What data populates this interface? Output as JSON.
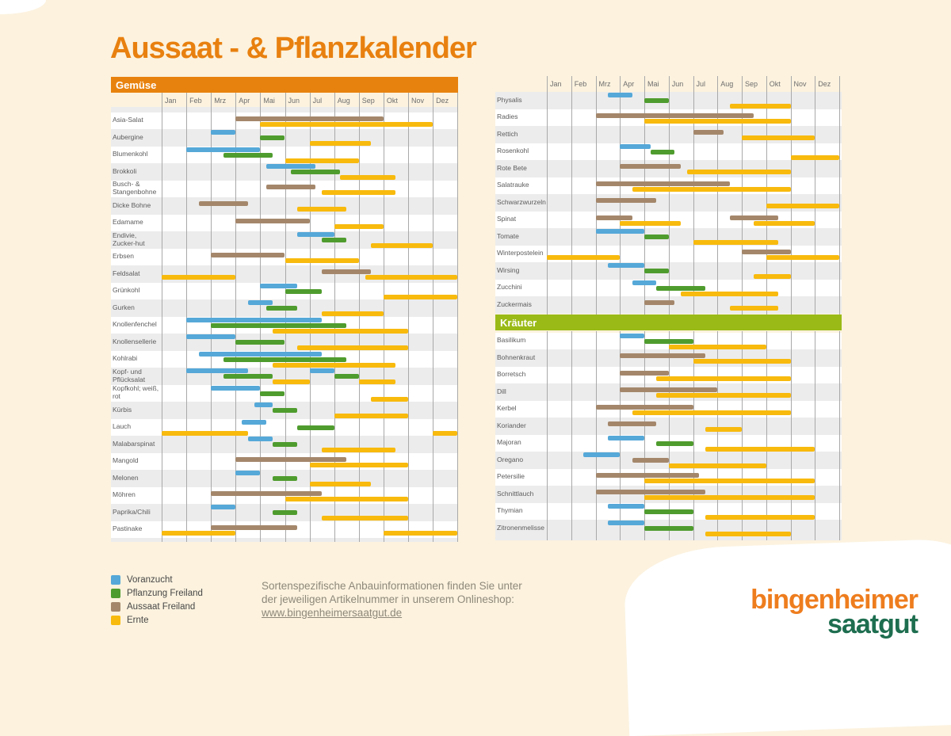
{
  "title": "Aussaat - & Pflanzkalender",
  "sections": {
    "gemuese": "Gemüse",
    "kraeuter": "Kräuter"
  },
  "months": [
    "Jan",
    "Feb",
    "Mrz",
    "Apr",
    "Mai",
    "Jun",
    "Jul",
    "Aug",
    "Sep",
    "Okt",
    "Nov",
    "Dez"
  ],
  "legend": [
    {
      "key": "voranzucht",
      "label": "Voranzucht"
    },
    {
      "key": "pflanzung",
      "label": "Pflanzung Freiland"
    },
    {
      "key": "aussaat",
      "label": "Aussaat Freiland"
    },
    {
      "key": "ernte",
      "label": "Ernte"
    }
  ],
  "colors": {
    "voranzucht": "#55a8d8",
    "pflanzung": "#4f9c2e",
    "aussaat": "#a4876b",
    "ernte": "#f8ba0d",
    "accent_orange": "#e8820e",
    "accent_green": "#9aba17",
    "row_alt": "#ececec",
    "background": "#fcf2de",
    "gridline": "#a9a9a9",
    "logo_orange": "#ee7d1e",
    "logo_green": "#1e6e50"
  },
  "info": {
    "line1": "Sortenspezifische Anbauinformationen finden Sie unter",
    "line2": "der jeweiligen Artikelnummer in unserem Onlineshop:",
    "link": "www.bingenheimersaatgut.de"
  },
  "logo": {
    "line1": "bingenheimer",
    "line2": "saatgut"
  },
  "chart_data": {
    "type": "gantt-calendar",
    "unit": "months; 1 = start of Jan, 13 = end of Dez; [bar_type, start, end]",
    "bar_types": {
      "voranzucht": "Voranzucht",
      "pflanzung": "Pflanzung Freiland",
      "aussaat": "Aussaat Freiland",
      "ernte": "Ernte"
    },
    "tables": {
      "left": {
        "section": "Gemüse",
        "rows": [
          {
            "label": "Asia-Salat",
            "bars": [
              [
                "aussaat",
                4,
                10
              ],
              [
                "ernte",
                5,
                12
              ]
            ]
          },
          {
            "label": "Aubergine",
            "bars": [
              [
                "voranzucht",
                3,
                4
              ],
              [
                "pflanzung",
                5,
                6
              ],
              [
                "ernte",
                7,
                9.5
              ]
            ]
          },
          {
            "label": "Blumenkohl",
            "bars": [
              [
                "voranzucht",
                2,
                5
              ],
              [
                "pflanzung",
                3.5,
                5.5
              ],
              [
                "ernte",
                6,
                9
              ]
            ]
          },
          {
            "label": "Brokkoli",
            "bars": [
              [
                "voranzucht",
                5.25,
                7.25
              ],
              [
                "pflanzung",
                6.25,
                8.25
              ],
              [
                "ernte",
                8.25,
                10.5
              ]
            ]
          },
          {
            "label": "Busch- & Stangenbohne",
            "bars": [
              [
                "aussaat",
                5.25,
                7.25
              ],
              [
                "ernte",
                7.5,
                10.5
              ]
            ]
          },
          {
            "label": "Dicke Bohne",
            "bars": [
              [
                "aussaat",
                2.5,
                4.5
              ],
              [
                "ernte",
                6.5,
                8.5
              ]
            ]
          },
          {
            "label": "Edamame",
            "bars": [
              [
                "aussaat",
                4,
                7
              ],
              [
                "ernte",
                8,
                10
              ]
            ]
          },
          {
            "label": "Endivie, Zucker-hut",
            "bars": [
              [
                "voranzucht",
                6.5,
                8
              ],
              [
                "pflanzung",
                7.5,
                8.5
              ],
              [
                "ernte",
                9.5,
                12
              ]
            ]
          },
          {
            "label": "Erbsen",
            "bars": [
              [
                "aussaat",
                3,
                6
              ],
              [
                "ernte",
                6,
                9
              ]
            ]
          },
          {
            "label": "Feldsalat",
            "bars": [
              [
                "aussaat",
                7.5,
                9.5
              ],
              [
                "ernte",
                1,
                4
              ],
              [
                "ernte",
                9.25,
                13
              ]
            ]
          },
          {
            "label": "Grünkohl",
            "bars": [
              [
                "voranzucht",
                5,
                6.5
              ],
              [
                "pflanzung",
                6,
                7.5
              ],
              [
                "ernte",
                10,
                13
              ]
            ]
          },
          {
            "label": "Gurken",
            "bars": [
              [
                "voranzucht",
                4.5,
                5.5
              ],
              [
                "pflanzung",
                5.25,
                6.5
              ],
              [
                "ernte",
                7.5,
                10
              ]
            ]
          },
          {
            "label": "Knollenfenchel",
            "bars": [
              [
                "voranzucht",
                2,
                7.5
              ],
              [
                "pflanzung",
                3,
                8.5
              ],
              [
                "ernte",
                5.5,
                11
              ]
            ]
          },
          {
            "label": "Knollensellerie",
            "bars": [
              [
                "voranzucht",
                2,
                4
              ],
              [
                "pflanzung",
                4,
                6
              ],
              [
                "ernte",
                6.5,
                11
              ]
            ]
          },
          {
            "label": "Kohlrabi",
            "bars": [
              [
                "voranzucht",
                2.5,
                7.5
              ],
              [
                "pflanzung",
                3.5,
                8.5
              ],
              [
                "ernte",
                5.5,
                10.5
              ]
            ]
          },
          {
            "label": "Kopf- und Pflücksalat",
            "bars": [
              [
                "voranzucht",
                2,
                4.5
              ],
              [
                "voranzucht",
                7,
                8
              ],
              [
                "pflanzung",
                3.5,
                5.5
              ],
              [
                "pflanzung",
                8,
                9
              ],
              [
                "ernte",
                5.5,
                7
              ],
              [
                "ernte",
                9,
                10.5
              ]
            ]
          },
          {
            "label": "Kopfkohl; weiß, rot",
            "bars": [
              [
                "voranzucht",
                3,
                5
              ],
              [
                "pflanzung",
                5,
                6
              ],
              [
                "ernte",
                9.5,
                11
              ]
            ]
          },
          {
            "label": "Kürbis",
            "bars": [
              [
                "voranzucht",
                4.75,
                5.5
              ],
              [
                "pflanzung",
                5.5,
                6.5
              ],
              [
                "ernte",
                8,
                11
              ]
            ]
          },
          {
            "label": "Lauch",
            "bars": [
              [
                "voranzucht",
                4.25,
                5.25
              ],
              [
                "pflanzung",
                6.5,
                8
              ],
              [
                "ernte",
                1,
                4.5
              ],
              [
                "ernte",
                12,
                13
              ]
            ]
          },
          {
            "label": "Malabarspinat",
            "bars": [
              [
                "voranzucht",
                4.5,
                5.5
              ],
              [
                "pflanzung",
                5.5,
                6.5
              ],
              [
                "ernte",
                7.5,
                10.5
              ]
            ]
          },
          {
            "label": "Mangold",
            "bars": [
              [
                "aussaat",
                4,
                8.5
              ],
              [
                "ernte",
                7,
                11
              ]
            ]
          },
          {
            "label": "Melonen",
            "bars": [
              [
                "voranzucht",
                4,
                5
              ],
              [
                "pflanzung",
                5.5,
                6.5
              ],
              [
                "ernte",
                7,
                9.5
              ]
            ]
          },
          {
            "label": "Möhren",
            "bars": [
              [
                "aussaat",
                3,
                7.5
              ],
              [
                "ernte",
                6,
                11
              ]
            ]
          },
          {
            "label": "Paprika/Chili",
            "bars": [
              [
                "voranzucht",
                3,
                4
              ],
              [
                "pflanzung",
                5.5,
                6.5
              ],
              [
                "ernte",
                7.5,
                11
              ]
            ]
          },
          {
            "label": "Pastinake",
            "bars": [
              [
                "aussaat",
                3,
                6.5
              ],
              [
                "ernte",
                1,
                4
              ],
              [
                "ernte",
                10,
                13
              ]
            ]
          }
        ]
      },
      "right_vegetables": {
        "rows": [
          {
            "label": "Physalis",
            "bars": [
              [
                "voranzucht",
                3.5,
                4.5
              ],
              [
                "pflanzung",
                5,
                6
              ],
              [
                "ernte",
                8.5,
                11
              ]
            ]
          },
          {
            "label": "Radies",
            "bars": [
              [
                "aussaat",
                3,
                9.5
              ],
              [
                "ernte",
                5,
                11
              ]
            ]
          },
          {
            "label": "Rettich",
            "bars": [
              [
                "aussaat",
                7,
                8.25
              ],
              [
                "ernte",
                9,
                12
              ]
            ]
          },
          {
            "label": "Rosenkohl",
            "bars": [
              [
                "voranzucht",
                4,
                5.25
              ],
              [
                "pflanzung",
                5.25,
                6.25
              ],
              [
                "ernte",
                11,
                13
              ]
            ]
          },
          {
            "label": "Rote Bete",
            "bars": [
              [
                "aussaat",
                4,
                6.5
              ],
              [
                "ernte",
                6.75,
                11
              ]
            ]
          },
          {
            "label": "Salatrauke",
            "bars": [
              [
                "aussaat",
                3,
                8.5
              ],
              [
                "ernte",
                4.5,
                11
              ]
            ]
          },
          {
            "label": "Schwarzwurzeln",
            "bars": [
              [
                "aussaat",
                3,
                5.5
              ],
              [
                "ernte",
                10,
                13
              ]
            ]
          },
          {
            "label": "Spinat",
            "bars": [
              [
                "aussaat",
                3,
                4.5
              ],
              [
                "aussaat",
                8.5,
                10.5
              ],
              [
                "ernte",
                4,
                6.5
              ],
              [
                "ernte",
                9.5,
                12
              ]
            ]
          },
          {
            "label": "Tomate",
            "bars": [
              [
                "voranzucht",
                3,
                5
              ],
              [
                "pflanzung",
                5,
                6
              ],
              [
                "ernte",
                7,
                10.5
              ]
            ]
          },
          {
            "label": "Winterpostelein",
            "bars": [
              [
                "aussaat",
                9,
                11
              ],
              [
                "ernte",
                1,
                4
              ],
              [
                "ernte",
                10,
                13
              ]
            ]
          },
          {
            "label": "Wirsing",
            "bars": [
              [
                "voranzucht",
                3.5,
                5
              ],
              [
                "pflanzung",
                5,
                6
              ],
              [
                "ernte",
                9.5,
                11
              ]
            ]
          },
          {
            "label": "Zucchini",
            "bars": [
              [
                "voranzucht",
                4.5,
                5.5
              ],
              [
                "pflanzung",
                5.5,
                7.5
              ],
              [
                "ernte",
                6.5,
                10.5
              ]
            ]
          },
          {
            "label": "Zuckermais",
            "bars": [
              [
                "aussaat",
                5,
                6.25
              ],
              [
                "ernte",
                8.5,
                10.5
              ]
            ]
          }
        ]
      },
      "right_herbs": {
        "section": "Kräuter",
        "rows": [
          {
            "label": "Basilikum",
            "bars": [
              [
                "voranzucht",
                4,
                5
              ],
              [
                "pflanzung",
                5,
                7
              ],
              [
                "ernte",
                6,
                10
              ]
            ]
          },
          {
            "label": "Bohnenkraut",
            "bars": [
              [
                "aussaat",
                4,
                7.5
              ],
              [
                "ernte",
                7,
                11
              ]
            ]
          },
          {
            "label": "Borretsch",
            "bars": [
              [
                "aussaat",
                4,
                6
              ],
              [
                "ernte",
                5.5,
                11
              ]
            ]
          },
          {
            "label": "Dill",
            "bars": [
              [
                "aussaat",
                4,
                8
              ],
              [
                "ernte",
                5.5,
                11
              ]
            ]
          },
          {
            "label": "Kerbel",
            "bars": [
              [
                "aussaat",
                3,
                7
              ],
              [
                "ernte",
                4.5,
                11
              ]
            ]
          },
          {
            "label": "Koriander",
            "bars": [
              [
                "aussaat",
                3.5,
                5.5
              ],
              [
                "ernte",
                7.5,
                9
              ]
            ]
          },
          {
            "label": "Majoran",
            "bars": [
              [
                "voranzucht",
                3.5,
                5
              ],
              [
                "pflanzung",
                5.5,
                7
              ],
              [
                "ernte",
                7.5,
                12
              ]
            ]
          },
          {
            "label": "Oregano",
            "bars": [
              [
                "voranzucht",
                2.5,
                4
              ],
              [
                "aussaat",
                4.5,
                6
              ],
              [
                "ernte",
                6,
                10
              ]
            ]
          },
          {
            "label": "Petersilie",
            "bars": [
              [
                "aussaat",
                3,
                7.25
              ],
              [
                "ernte",
                5,
                12
              ]
            ]
          },
          {
            "label": "Schnittlauch",
            "bars": [
              [
                "aussaat",
                3,
                7.5
              ],
              [
                "ernte",
                5,
                12
              ]
            ]
          },
          {
            "label": "Thymian",
            "bars": [
              [
                "voranzucht",
                3.5,
                5
              ],
              [
                "pflanzung",
                5,
                7
              ],
              [
                "ernte",
                7.5,
                12
              ]
            ]
          },
          {
            "label": "Zitronenmelisse",
            "bars": [
              [
                "voranzucht",
                3.5,
                5
              ],
              [
                "pflanzung",
                5,
                7
              ],
              [
                "ernte",
                7.5,
                11
              ]
            ]
          }
        ]
      }
    }
  }
}
